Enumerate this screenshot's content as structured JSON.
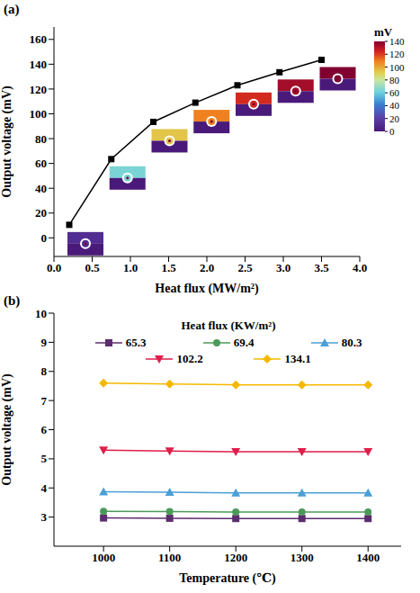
{
  "chart_data": [
    {
      "type": "line",
      "panel": "(a)",
      "x_label": "Heat flux (MW/m²)",
      "y_label": "Output voltage (mV)",
      "x": [
        0.2,
        0.75,
        1.3,
        1.85,
        2.4,
        2.95,
        3.5
      ],
      "values": [
        10.5,
        63.5,
        93.5,
        109,
        123,
        133.5,
        143.5
      ],
      "color": "#000000",
      "marker": "square",
      "xlim": [
        0,
        4
      ],
      "xticks": [
        {
          "value": 0,
          "label": "0.0"
        },
        {
          "value": 0.5,
          "label": "0.5"
        },
        {
          "value": 1,
          "label": "1.0"
        },
        {
          "value": 1.5,
          "label": "1.5"
        },
        {
          "value": 2,
          "label": "2.0"
        },
        {
          "value": 2.5,
          "label": "2.5"
        },
        {
          "value": 3,
          "label": "3.0"
        },
        {
          "value": 3.5,
          "label": "3.5"
        },
        {
          "value": 4,
          "label": "4.0"
        }
      ],
      "ylim": [
        -15,
        170
      ],
      "yticks": [
        0,
        20,
        40,
        60,
        80,
        100,
        120,
        140,
        160
      ],
      "grid": false,
      "colorbar": {
        "label": "mV",
        "range": [
          0,
          140
        ],
        "ticks": [
          0,
          20,
          40,
          60,
          80,
          100,
          120,
          140
        ]
      }
    },
    {
      "type": "line",
      "panel": "(b)",
      "x_label": "Temperature (℃)",
      "y_label": "Output voltage (mV)",
      "legend_title": "Heat flux (KW/m²)",
      "legend": "top",
      "x": [
        1000,
        1100,
        1200,
        1300,
        1400
      ],
      "series": [
        {
          "name": "65.3",
          "color": "#5c2d6e",
          "marker": "square",
          "values": [
            2.97,
            2.96,
            2.95,
            2.95,
            2.95
          ]
        },
        {
          "name": "69.4",
          "color": "#4c9a5a",
          "marker": "circle",
          "values": [
            3.2,
            3.19,
            3.17,
            3.17,
            3.17
          ]
        },
        {
          "name": "80.3",
          "color": "#4a9fd6",
          "marker": "triangle",
          "values": [
            3.87,
            3.85,
            3.83,
            3.83,
            3.83
          ]
        },
        {
          "name": "102.2",
          "color": "#e01e4a",
          "marker": "triangle-down",
          "values": [
            5.3,
            5.27,
            5.24,
            5.24,
            5.24
          ]
        },
        {
          "name": "134.1",
          "color": "#f5b800",
          "marker": "diamond",
          "values": [
            7.6,
            7.57,
            7.54,
            7.54,
            7.54
          ]
        }
      ],
      "xlim": [
        925,
        1450
      ],
      "xticks": [
        1000,
        1100,
        1200,
        1300,
        1400
      ],
      "ylim": [
        2,
        10
      ],
      "yticks": [
        3,
        4,
        5,
        6,
        7,
        8,
        9,
        10
      ],
      "grid": false
    }
  ]
}
